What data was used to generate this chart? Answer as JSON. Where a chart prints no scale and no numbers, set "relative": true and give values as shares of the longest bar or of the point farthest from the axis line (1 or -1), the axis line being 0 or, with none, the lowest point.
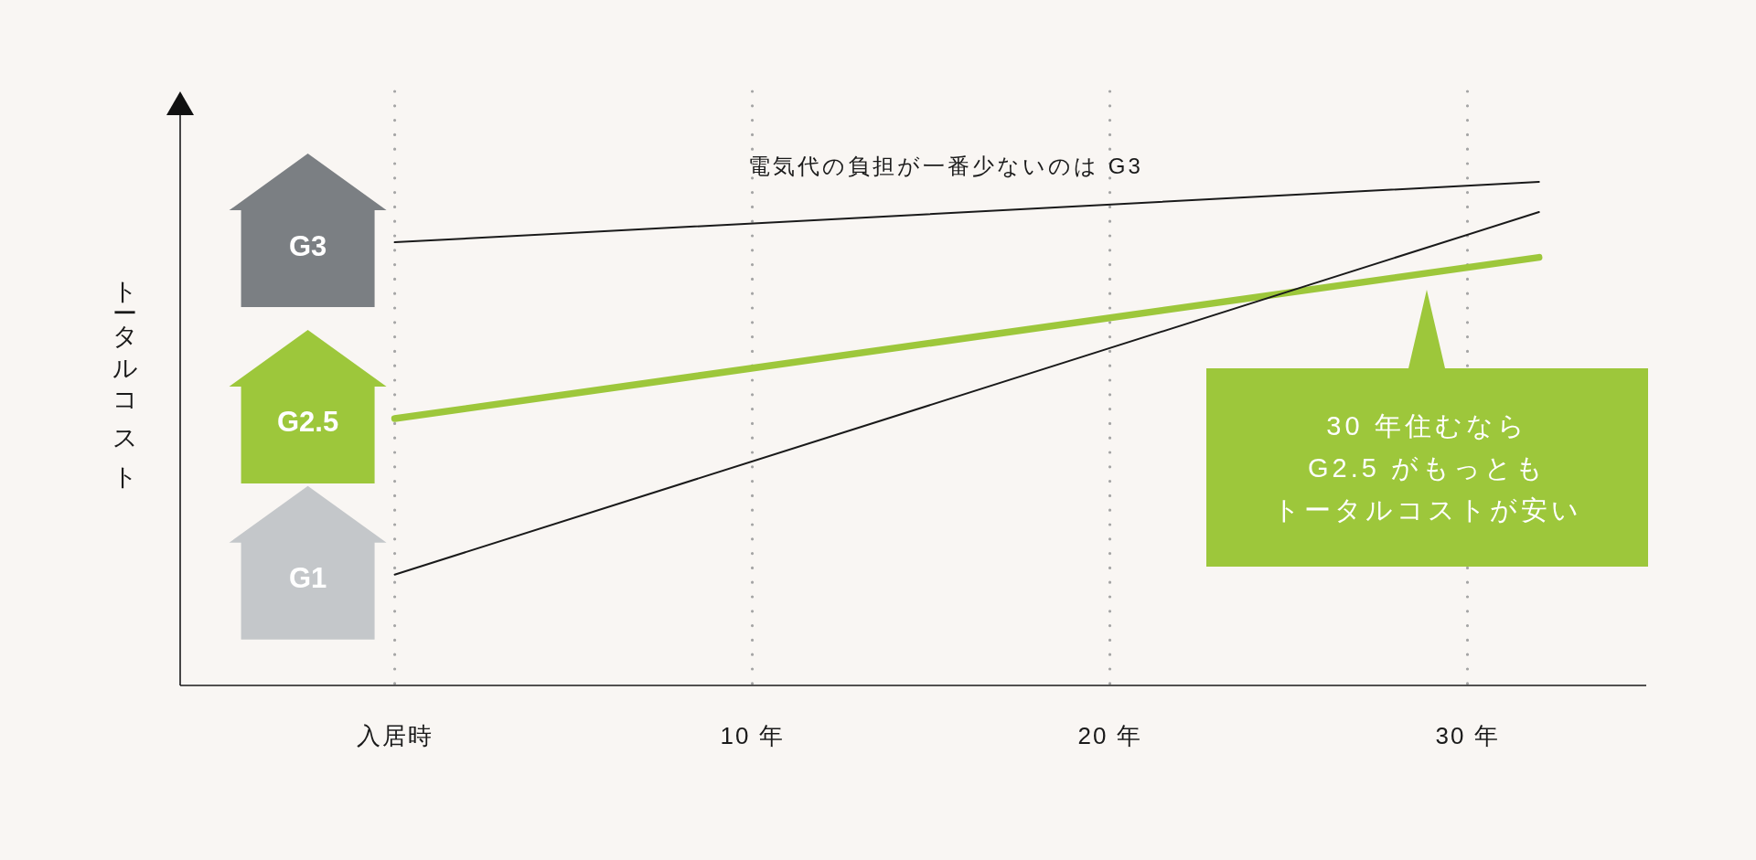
{
  "chart_data": {
    "type": "line",
    "relative": true,
    "x": [
      0,
      32
    ],
    "xlim": [
      -6,
      35
    ],
    "xticks": [
      {
        "value": 0,
        "label": "入居時"
      },
      {
        "value": 10,
        "label": "10 年"
      },
      {
        "value": 20,
        "label": "20 年"
      },
      {
        "value": 30,
        "label": "30 年"
      }
    ],
    "ylabel": "トータルコスト",
    "series": [
      {
        "name": "G3",
        "color": "#1a1a1a",
        "values": [
          0.88,
          1
        ]
      },
      {
        "name": "G2.5",
        "color": "#9dc73b",
        "values": [
          0.53,
          0.85
        ]
      },
      {
        "name": "G1",
        "color": "#1a1a1a",
        "values": [
          0.22,
          0.94
        ]
      }
    ],
    "annotations": [
      "電気代の負担が一番少ないのは G3",
      "30 年住むならG2.5 がもっともトータルコストが安い"
    ],
    "grid": "x",
    "line_style": "solid",
    "tick_labels": "x"
  }
}
